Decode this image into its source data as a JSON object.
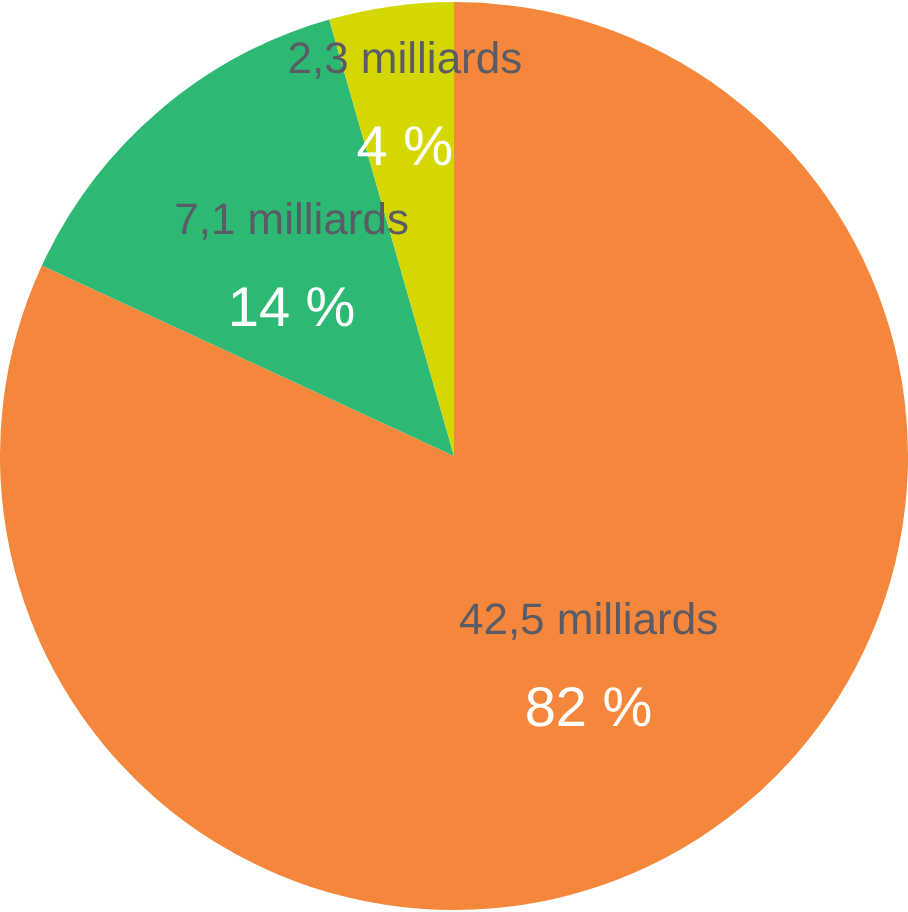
{
  "chart_data": {
    "type": "pie",
    "categories": [
      null,
      null,
      null
    ],
    "values": [
      42.5,
      7.1,
      2.3
    ],
    "colors": [
      "#f4873b",
      "#2db873",
      "#d4d800"
    ],
    "value_labels": [
      "42,5 milliards",
      "7,1 milliards",
      "2,3 milliards"
    ],
    "annotations": [
      "82 %",
      "14 %",
      "4 %"
    ],
    "legend": false
  }
}
